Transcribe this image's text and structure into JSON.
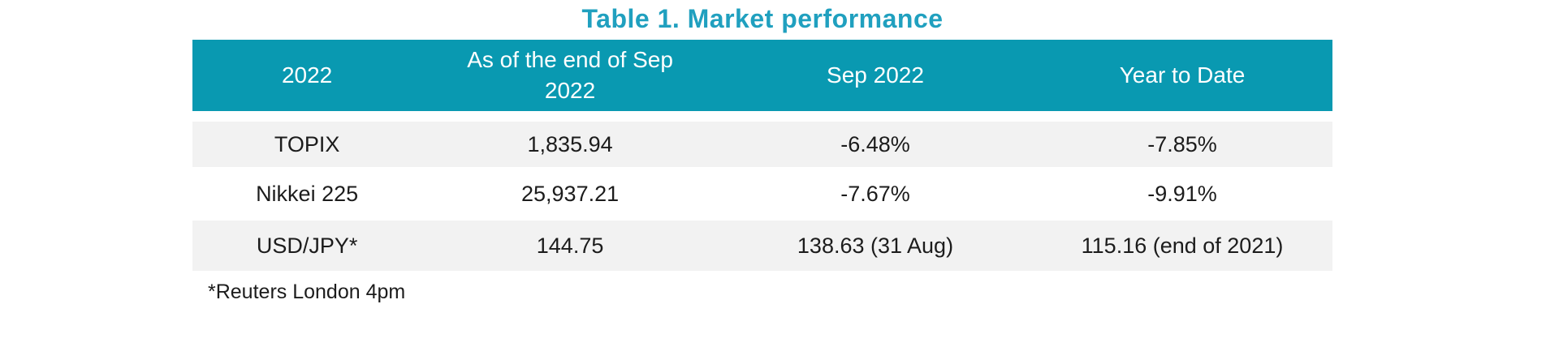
{
  "title": {
    "text": "Table 1. Market performance",
    "color": "#20A0BF"
  },
  "table": {
    "header_bg_color": "#0999B1",
    "header_text_color": "#FFFFFF",
    "stripe_color": "#F2F2F2",
    "columns": [
      "2022",
      "As of the end of Sep 2022",
      "Sep 2022",
      "Year to Date"
    ],
    "rows": [
      {
        "cells": [
          "TOPIX",
          "1,835.94",
          "-6.48%",
          "-7.85%"
        ]
      },
      {
        "cells": [
          "Nikkei 225",
          "25,937.21",
          "-7.67%",
          "-9.91%"
        ]
      },
      {
        "cells": [
          "USD/JPY*",
          "144.75",
          "138.63 (31 Aug)",
          "115.16 (end of 2021)"
        ]
      }
    ]
  },
  "footnote": "*Reuters London 4pm",
  "chart_data": {
    "type": "table",
    "title": "Table 1. Market performance",
    "columns": [
      "2022",
      "As of the end of Sep 2022",
      "Sep 2022",
      "Year to Date"
    ],
    "rows": [
      [
        "TOPIX",
        "1,835.94",
        "-6.48%",
        "-7.85%"
      ],
      [
        "Nikkei 225",
        "25,937.21",
        "-7.67%",
        "-9.91%"
      ],
      [
        "USD/JPY*",
        "144.75",
        "138.63 (31 Aug)",
        "115.16 (end of 2021)"
      ]
    ],
    "footnote": "*Reuters London 4pm"
  }
}
